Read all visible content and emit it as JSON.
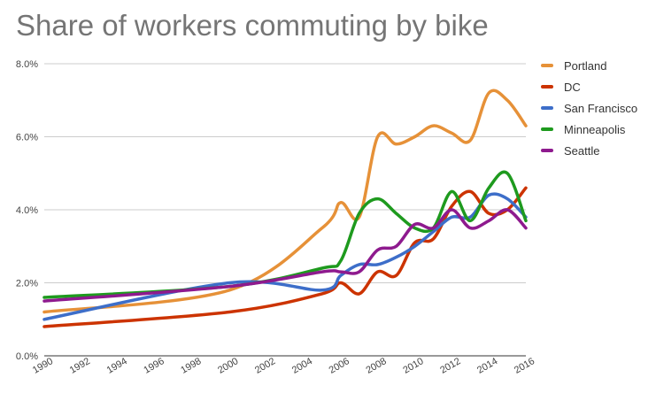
{
  "chart_data": {
    "type": "line",
    "title": "Share of workers commuting by bike",
    "xlabel": "",
    "ylabel": "",
    "xlim": [
      1990,
      2016
    ],
    "ylim": [
      0,
      8
    ],
    "x_ticks": [
      "1990",
      "1992",
      "1994",
      "1996",
      "1998",
      "2000",
      "2002",
      "2004",
      "2006",
      "2008",
      "2010",
      "2012",
      "2014",
      "2016"
    ],
    "y_ticks": [
      {
        "value": 0,
        "label": "0.0%"
      },
      {
        "value": 2,
        "label": "2.0%"
      },
      {
        "value": 4,
        "label": "4.0%"
      },
      {
        "value": 6,
        "label": "6.0%"
      },
      {
        "value": 8,
        "label": "8.0%"
      }
    ],
    "grid": true,
    "legend_position": "right",
    "series": [
      {
        "name": "Portland",
        "color": "#e69138",
        "points": [
          [
            1990,
            1.2
          ],
          [
            2000,
            1.8
          ],
          [
            2005,
            3.5
          ],
          [
            2006,
            4.2
          ],
          [
            2007,
            3.8
          ],
          [
            2008,
            6.0
          ],
          [
            2009,
            5.8
          ],
          [
            2010,
            6.0
          ],
          [
            2011,
            6.3
          ],
          [
            2012,
            6.1
          ],
          [
            2013,
            5.9
          ],
          [
            2014,
            7.2
          ],
          [
            2015,
            7.0
          ],
          [
            2016,
            6.3
          ]
        ]
      },
      {
        "name": "DC",
        "color": "#cc3300",
        "points": [
          [
            1990,
            0.8
          ],
          [
            2000,
            1.2
          ],
          [
            2005,
            1.7
          ],
          [
            2006,
            2.0
          ],
          [
            2007,
            1.7
          ],
          [
            2008,
            2.3
          ],
          [
            2009,
            2.2
          ],
          [
            2010,
            3.1
          ],
          [
            2011,
            3.2
          ],
          [
            2012,
            4.1
          ],
          [
            2013,
            4.5
          ],
          [
            2014,
            3.9
          ],
          [
            2015,
            4.0
          ],
          [
            2016,
            4.6
          ]
        ]
      },
      {
        "name": "San Francisco",
        "color": "#3d6ec9",
        "points": [
          [
            1990,
            1.0
          ],
          [
            2000,
            2.0
          ],
          [
            2005,
            1.8
          ],
          [
            2006,
            2.2
          ],
          [
            2007,
            2.5
          ],
          [
            2008,
            2.5
          ],
          [
            2009,
            2.7
          ],
          [
            2010,
            3.0
          ],
          [
            2011,
            3.4
          ],
          [
            2012,
            3.8
          ],
          [
            2013,
            3.8
          ],
          [
            2014,
            4.4
          ],
          [
            2015,
            4.3
          ],
          [
            2016,
            3.8
          ]
        ]
      },
      {
        "name": "Minneapolis",
        "color": "#1e9a1e",
        "points": [
          [
            1990,
            1.6
          ],
          [
            2000,
            1.9
          ],
          [
            2005,
            2.4
          ],
          [
            2006,
            2.6
          ],
          [
            2007,
            3.9
          ],
          [
            2008,
            4.3
          ],
          [
            2009,
            3.9
          ],
          [
            2010,
            3.5
          ],
          [
            2011,
            3.5
          ],
          [
            2012,
            4.5
          ],
          [
            2013,
            3.7
          ],
          [
            2014,
            4.6
          ],
          [
            2015,
            5.0
          ],
          [
            2016,
            3.7
          ]
        ]
      },
      {
        "name": "Seattle",
        "color": "#8e1a8e",
        "points": [
          [
            1990,
            1.5
          ],
          [
            2000,
            1.9
          ],
          [
            2005,
            2.3
          ],
          [
            2006,
            2.3
          ],
          [
            2007,
            2.3
          ],
          [
            2008,
            2.9
          ],
          [
            2009,
            3.0
          ],
          [
            2010,
            3.6
          ],
          [
            2011,
            3.5
          ],
          [
            2012,
            4.0
          ],
          [
            2013,
            3.5
          ],
          [
            2014,
            3.7
          ],
          [
            2015,
            4.0
          ],
          [
            2016,
            3.5
          ]
        ]
      }
    ]
  }
}
